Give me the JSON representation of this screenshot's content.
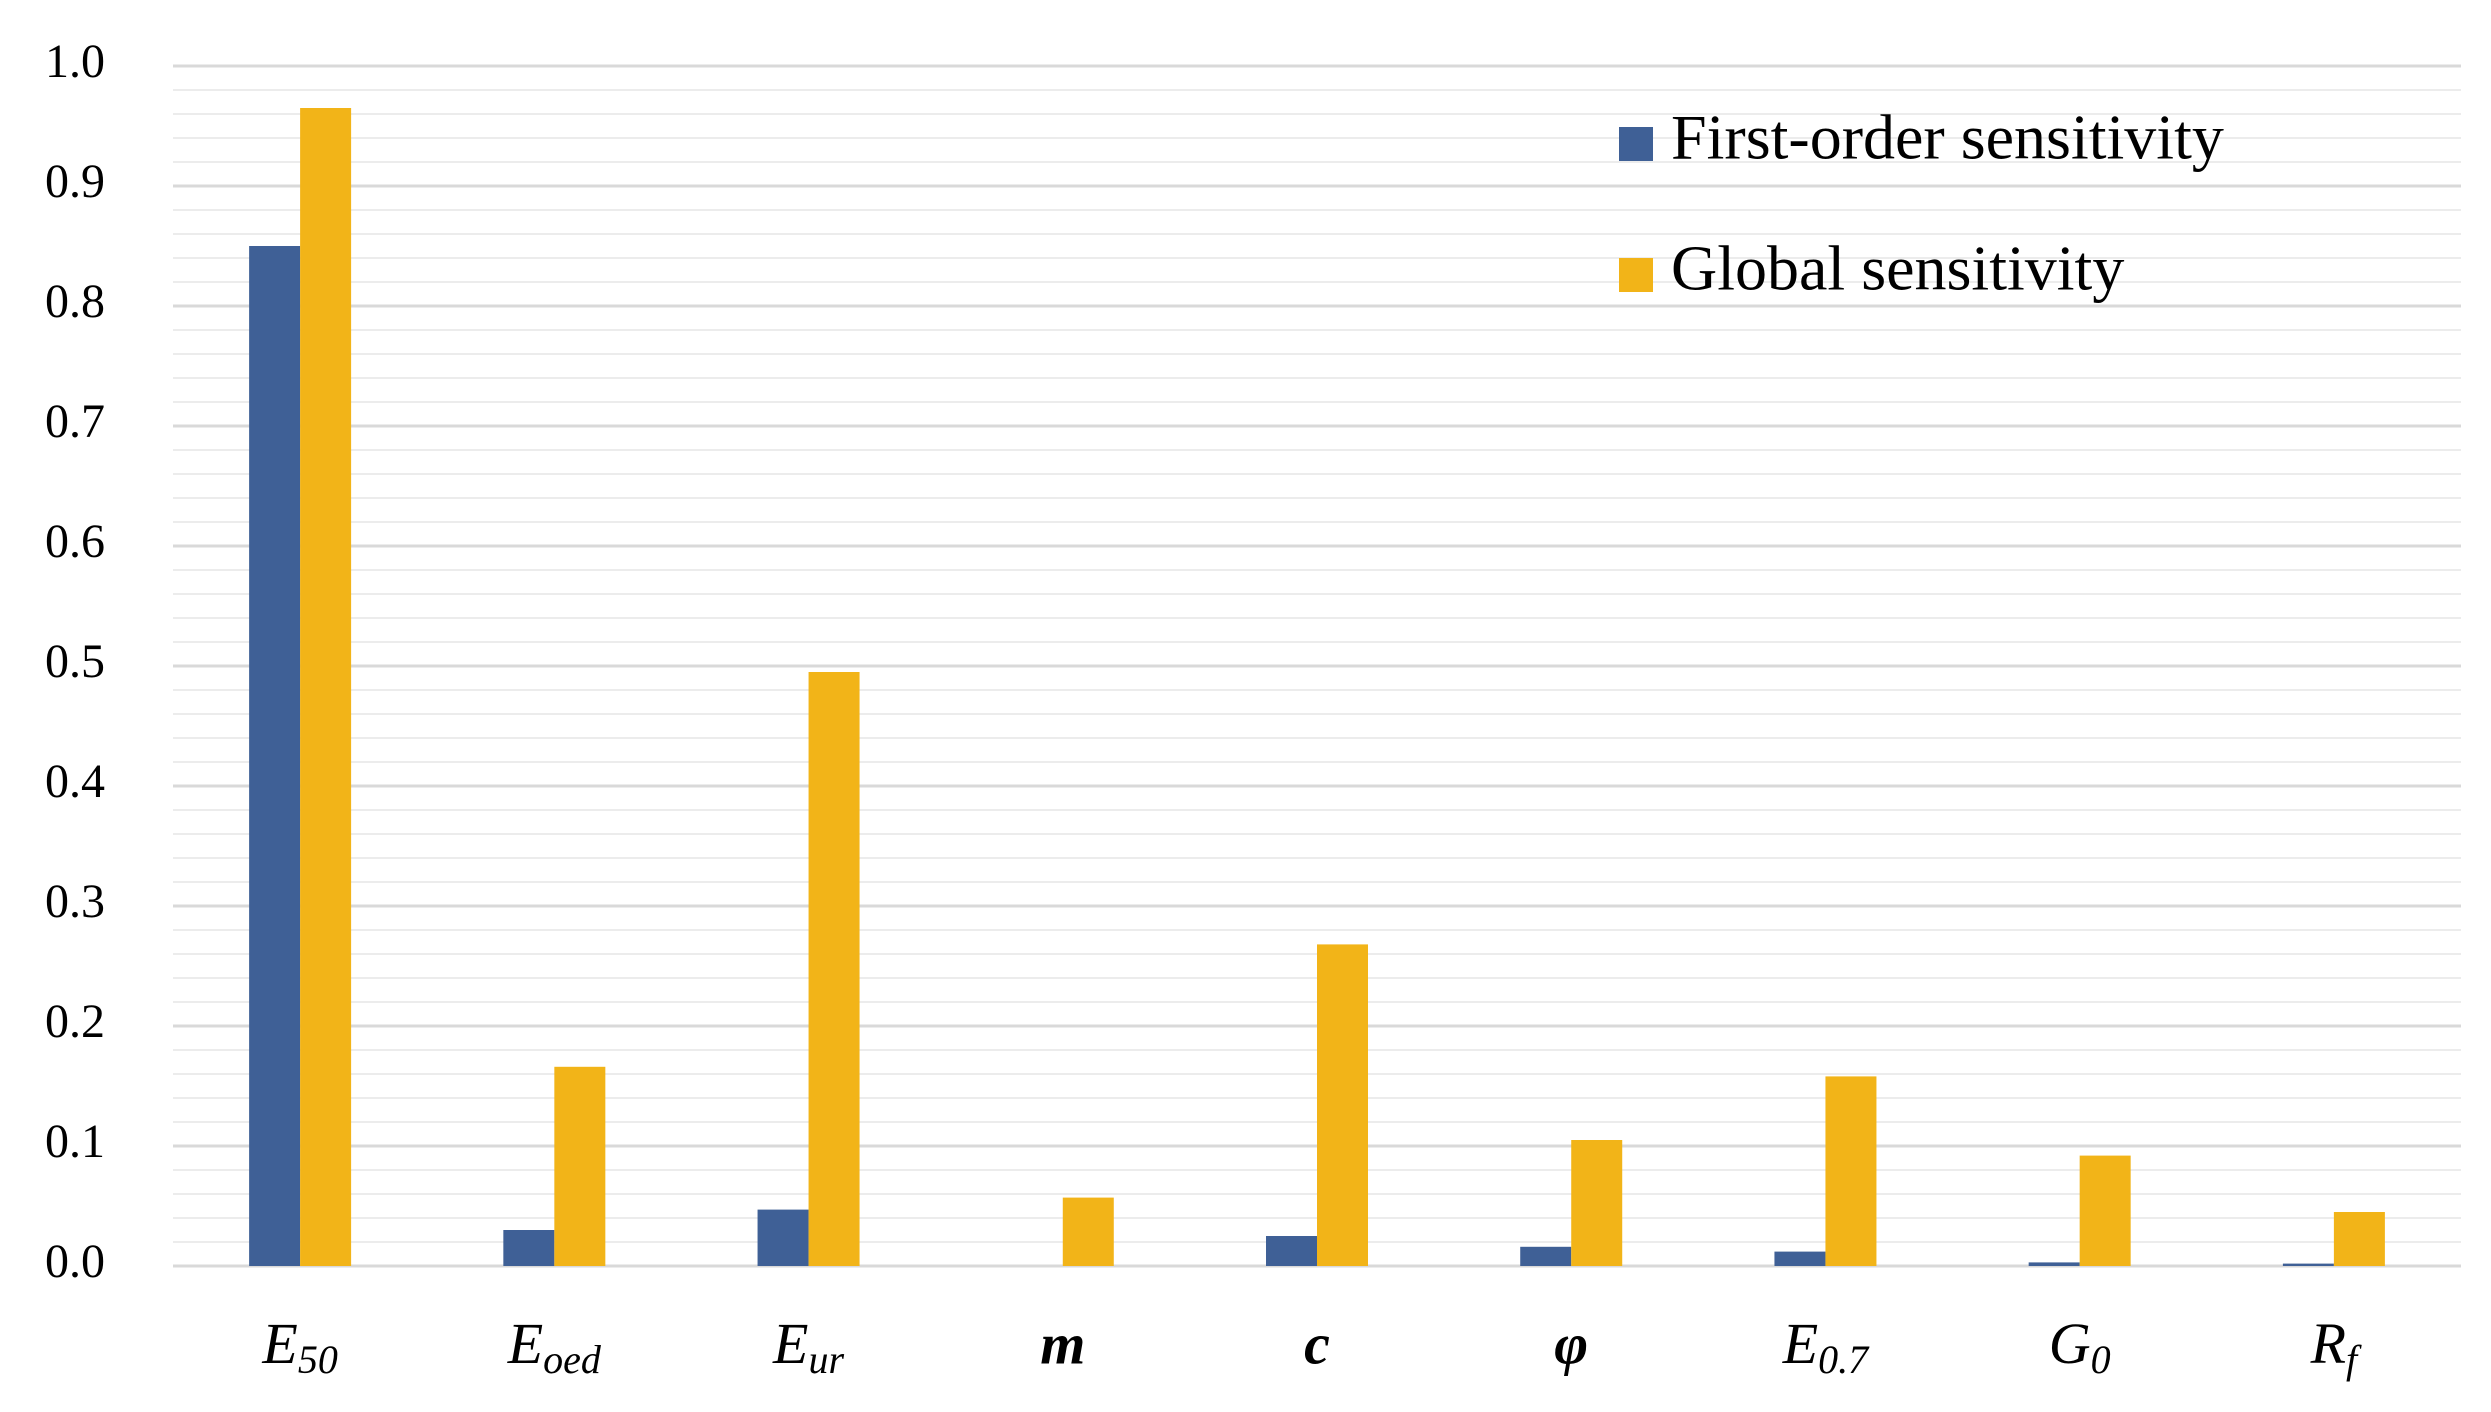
{
  "chart_data": {
    "type": "bar",
    "categories": [
      "E50",
      "Eoed",
      "Eur",
      "m",
      "c",
      "φ",
      "E0.7",
      "G0",
      "Rf"
    ],
    "series": [
      {
        "name": "First-order sensitivity",
        "color": "#3f6096",
        "values": [
          0.85,
          0.03,
          0.047,
          0,
          0.025,
          0.016,
          0.012,
          0.003,
          0.002
        ]
      },
      {
        "name": "Global sensitivity",
        "color": "#f2b418",
        "values": [
          0.965,
          0.166,
          0.495,
          0.057,
          0.268,
          0.105,
          0.158,
          0.092,
          0.045
        ]
      }
    ],
    "ylim": [
      0,
      1
    ],
    "yticks": [
      {
        "value": 0,
        "label": "0.0"
      },
      0.1,
      0.2,
      0.3,
      0.4,
      0.5,
      0.6,
      0.7,
      0.8,
      0.9,
      {
        "value": 1,
        "label": "1.0"
      }
    ],
    "grid": true,
    "legend": "upper right"
  }
}
